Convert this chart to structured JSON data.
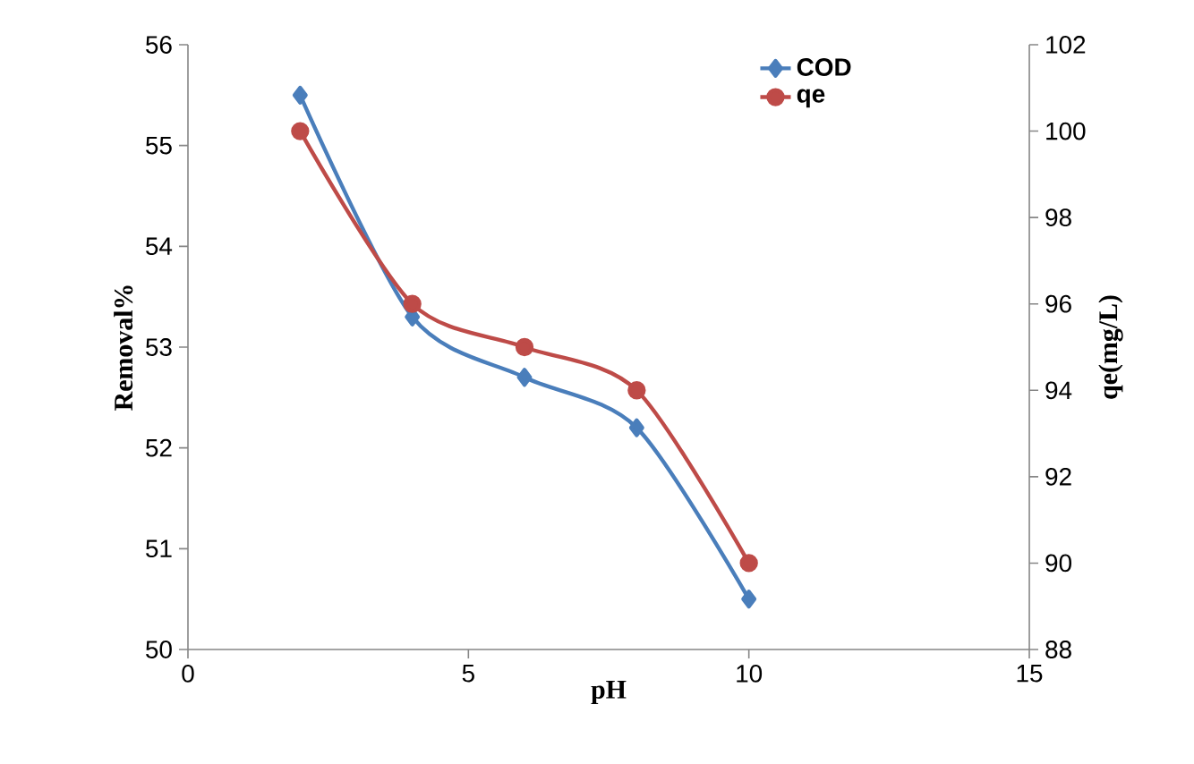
{
  "chart_data": {
    "type": "line",
    "xlabel": "pH",
    "ylabel": "Removal%",
    "y2label": "qe(mg/L)",
    "x": [
      2,
      4,
      6,
      8,
      10
    ],
    "series": [
      {
        "name": "COD",
        "color": "#4a7ebb",
        "marker": "diamond",
        "values": [
          55.5,
          53.3,
          52.7,
          52.2,
          50.5
        ]
      },
      {
        "name": "qe",
        "color": "#be4b48",
        "marker": "circle",
        "axis": "y2",
        "values": [
          100,
          96,
          95,
          94,
          90
        ]
      }
    ],
    "xlim": [
      0,
      15
    ],
    "xticks": [
      0,
      5,
      10,
      15
    ],
    "ylim": [
      50,
      56
    ],
    "yticks": [
      50,
      51,
      52,
      53,
      54,
      55,
      56
    ],
    "y2lim": [
      88,
      102
    ],
    "y2ticks": [
      88,
      90,
      92,
      94,
      96,
      98,
      100,
      102
    ],
    "grid": false,
    "legend": "top right"
  }
}
